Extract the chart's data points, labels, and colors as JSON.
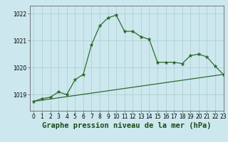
{
  "title": "Graphe pression niveau de la mer (hPa)",
  "bg_color": "#cce8ee",
  "grid_color": "#aacccc",
  "line_color": "#2d6b2d",
  "marker_color": "#2d6b2d",
  "xlim": [
    -0.5,
    23
  ],
  "ylim": [
    1018.4,
    1022.3
  ],
  "yticks": [
    1019,
    1020,
    1021,
    1022
  ],
  "xticks": [
    0,
    1,
    2,
    3,
    4,
    5,
    6,
    7,
    8,
    9,
    10,
    11,
    12,
    13,
    14,
    15,
    16,
    17,
    18,
    19,
    20,
    21,
    22,
    23
  ],
  "series1_x": [
    0,
    1,
    2,
    3,
    4,
    5,
    6,
    7,
    8,
    9,
    10,
    11,
    12,
    13,
    14,
    15,
    16,
    17,
    18,
    19,
    20,
    21,
    22,
    23
  ],
  "series1_y": [
    1018.75,
    1018.85,
    1018.9,
    1019.1,
    1019.0,
    1019.55,
    1019.75,
    1020.85,
    1021.55,
    1021.85,
    1021.95,
    1021.35,
    1021.35,
    1021.15,
    1021.05,
    1020.2,
    1020.2,
    1020.2,
    1020.15,
    1020.45,
    1020.5,
    1020.4,
    1020.05,
    1019.75
  ],
  "series2_x": [
    0,
    23
  ],
  "series2_y": [
    1018.75,
    1019.75
  ],
  "title_fontsize": 7.5,
  "tick_fontsize": 5.5
}
